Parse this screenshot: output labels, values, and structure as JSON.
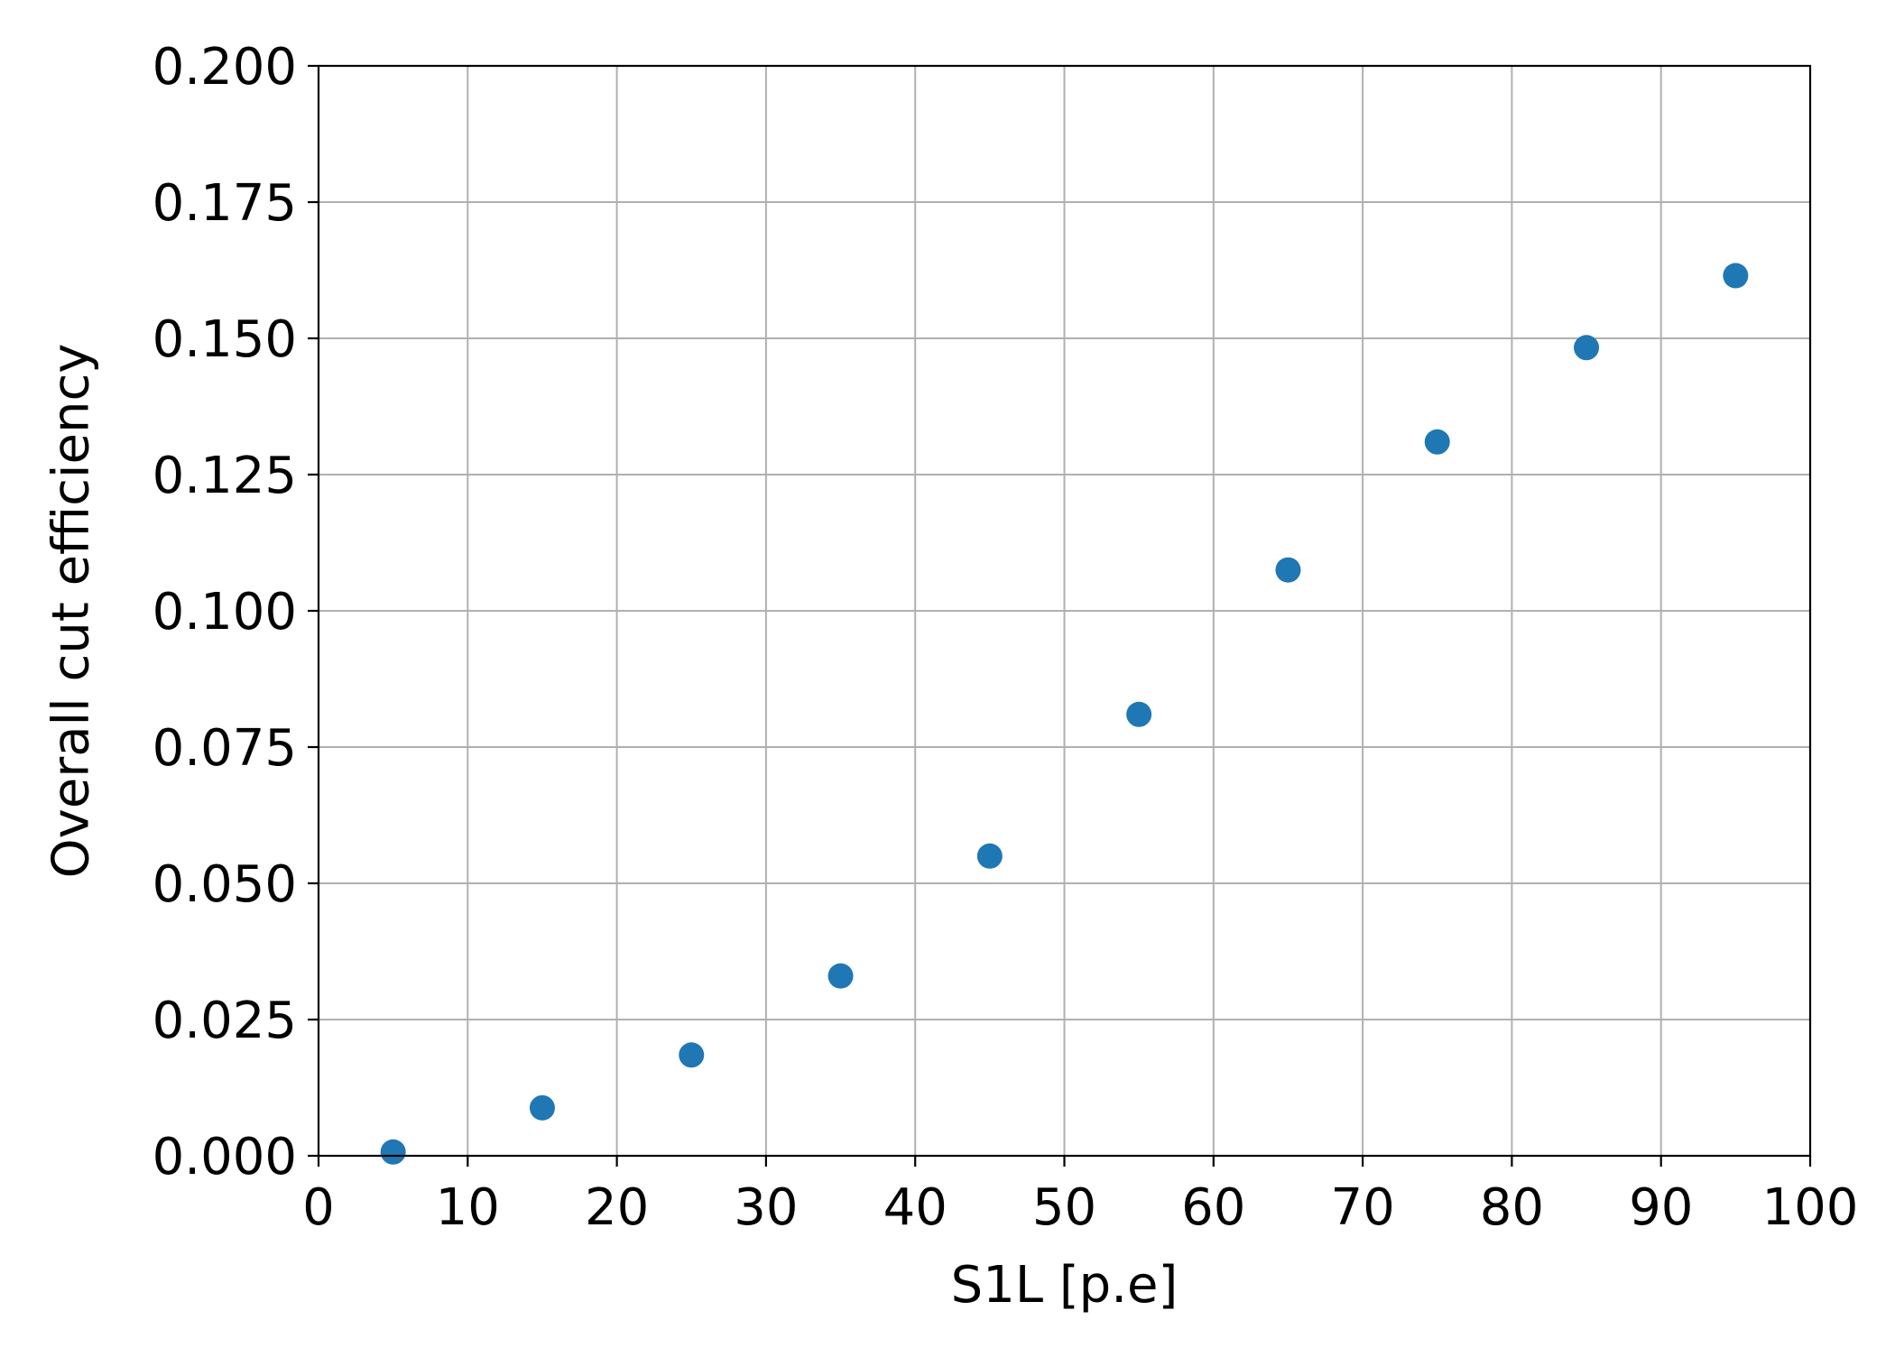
{
  "chart_data": {
    "type": "scatter",
    "title": "",
    "xlabel": "S1L [p.e]",
    "ylabel": "Overall cut efficiency",
    "xlim": [
      0,
      100
    ],
    "ylim": [
      0,
      0.2
    ],
    "grid": true,
    "x_ticks": [
      "0",
      "10",
      "20",
      "30",
      "40",
      "50",
      "60",
      "70",
      "80",
      "90",
      "100"
    ],
    "y_ticks": [
      "0.000",
      "0.025",
      "0.050",
      "0.075",
      "0.100",
      "0.125",
      "0.150",
      "0.175",
      "0.200"
    ],
    "series": [
      {
        "color": "#1f77b4",
        "x": [
          5,
          15,
          25,
          35,
          45,
          55,
          65,
          75,
          85,
          95
        ],
        "y": [
          0.0007,
          0.0088,
          0.0185,
          0.033,
          0.055,
          0.081,
          0.1075,
          0.131,
          0.1483,
          0.1615
        ]
      }
    ]
  }
}
